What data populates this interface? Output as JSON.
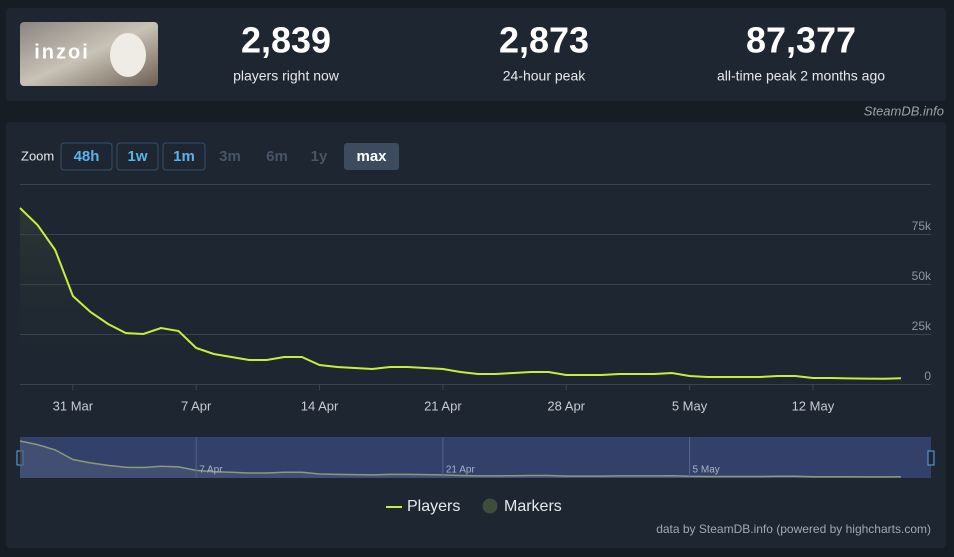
{
  "header": {
    "logo": "inzoi",
    "stats": [
      {
        "value": "2,839",
        "label": "players right now"
      },
      {
        "value": "2,873",
        "label": "24-hour peak"
      },
      {
        "value": "87,377",
        "label": "all-time peak 2 months ago"
      }
    ],
    "source": "SteamDB.info"
  },
  "chart_data": {
    "type": "line",
    "zoom": {
      "label": "Zoom",
      "buttons": [
        {
          "text": "48h",
          "state": "enabled"
        },
        {
          "text": "1w",
          "state": "enabled"
        },
        {
          "text": "1m",
          "state": "enabled"
        },
        {
          "text": "3m",
          "state": "disabled"
        },
        {
          "text": "6m",
          "state": "disabled"
        },
        {
          "text": "1y",
          "state": "disabled"
        },
        {
          "text": "max",
          "state": "selected"
        }
      ]
    },
    "x": [
      "28 Mar",
      "29 Mar",
      "30 Mar",
      "31 Mar",
      "1 Apr",
      "2 Apr",
      "3 Apr",
      "4 Apr",
      "5 Apr",
      "6 Apr",
      "7 Apr",
      "8 Apr",
      "9 Apr",
      "10 Apr",
      "11 Apr",
      "12 Apr",
      "13 Apr",
      "14 Apr",
      "15 Apr",
      "16 Apr",
      "17 Apr",
      "18 Apr",
      "19 Apr",
      "20 Apr",
      "21 Apr",
      "22 Apr",
      "23 Apr",
      "24 Apr",
      "25 Apr",
      "26 Apr",
      "27 Apr",
      "28 Apr",
      "29 Apr",
      "30 Apr",
      "1 May",
      "2 May",
      "3 May",
      "4 May",
      "5 May",
      "6 May",
      "7 May",
      "8 May",
      "9 May",
      "10 May",
      "11 May",
      "12 May",
      "13 May",
      "14 May",
      "15 May",
      "16 May",
      "17 May"
    ],
    "series": [
      {
        "name": "Players",
        "color": "#c8ee3c",
        "values": [
          88000,
          79500,
          67000,
          44000,
          36000,
          30000,
          25500,
          25000,
          28000,
          26500,
          18000,
          15000,
          13500,
          12000,
          12000,
          13500,
          13500,
          9500,
          8500,
          8000,
          7500,
          8500,
          8500,
          8000,
          7500,
          6000,
          5000,
          5000,
          5500,
          6000,
          6000,
          4500,
          4500,
          4500,
          5000,
          5000,
          5000,
          5500,
          4000,
          3500,
          3500,
          3500,
          3500,
          4000,
          4000,
          3000,
          3000,
          2800,
          2700,
          2600,
          2900
        ]
      }
    ],
    "marker_legend": {
      "name": "Markers",
      "color": "#3d4f3a"
    },
    "xticks": [
      "31 Mar",
      "7 Apr",
      "14 Apr",
      "21 Apr",
      "28 Apr",
      "5 May",
      "12 May"
    ],
    "navigator_ticks": [
      "7 Apr",
      "21 Apr",
      "5 May"
    ],
    "ylim": [
      0,
      100000
    ],
    "yticks": [
      0,
      {
        "value": 25000,
        "label": "25k"
      },
      {
        "value": 50000,
        "label": "50k"
      },
      {
        "value": 75000,
        "label": "75k"
      }
    ],
    "grid": true,
    "credits": "data by SteamDB.info (powered by highcharts.com)"
  }
}
